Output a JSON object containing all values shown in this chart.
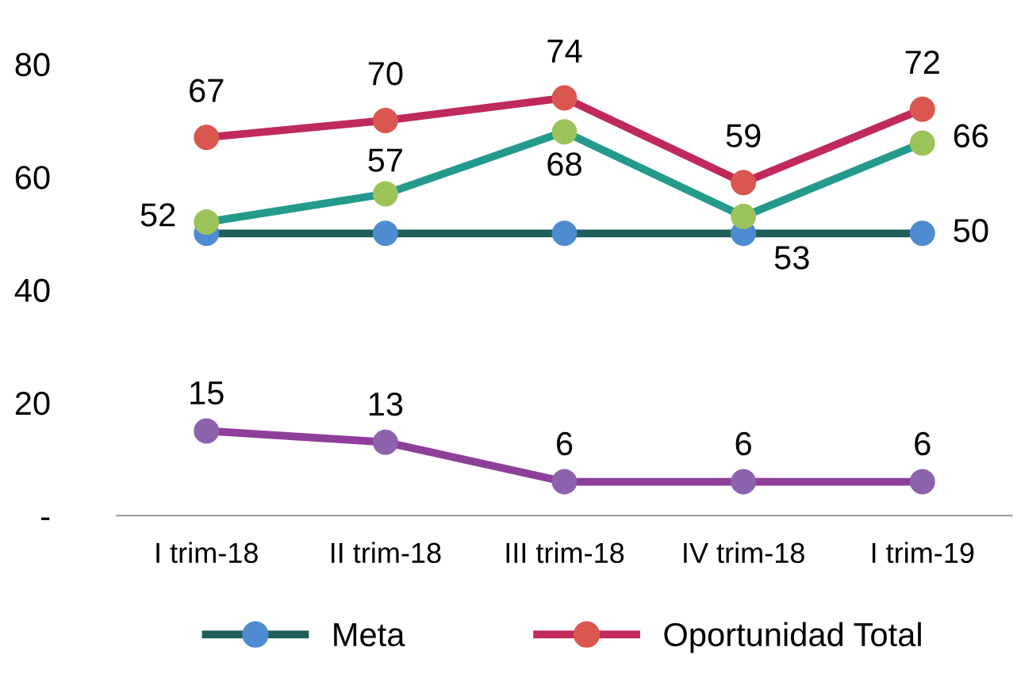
{
  "chart_data": {
    "type": "line",
    "categories": [
      "I trim-18",
      "II trim-18",
      "III trim-18",
      "IV trim-18",
      "I trim-19"
    ],
    "series": [
      {
        "name": "Meta",
        "color": "#1f5f5b",
        "colors": [
          "#4f8bd0",
          "#4f8bd0",
          "#4f8bd0",
          "#4f8bd0",
          "#4f8bd0"
        ],
        "values": [
          50,
          50,
          50,
          50,
          50
        ],
        "value_labels": [
          null,
          null,
          null,
          null,
          "50"
        ]
      },
      {
        "name": "Oportunidad Total",
        "color": "#bf2a5a",
        "colors": [
          "#d9574f",
          "#d9574f",
          "#d9574f",
          "#d9574f",
          "#d9574f"
        ],
        "values": [
          67,
          70,
          74,
          59,
          72
        ],
        "value_labels": [
          "67",
          "70",
          "74",
          "59",
          "72"
        ]
      },
      {
        "color": "#239a8c",
        "colors": [
          "#9cc35a",
          "#9cc35a",
          "#9cc35a",
          "#9cc35a",
          "#9cc35a"
        ],
        "values": [
          52,
          57,
          68,
          53,
          66
        ],
        "value_labels": [
          "52",
          "57",
          "68",
          "53",
          "66"
        ]
      },
      {
        "color": "#8e3f9a",
        "colors": [
          "#8c62ad",
          "#8c62ad",
          "#8c62ad",
          "#8c62ad",
          "#8c62ad"
        ],
        "values": [
          15,
          13,
          6,
          6,
          6
        ],
        "value_labels": [
          "15",
          "13",
          "6",
          "6",
          "6"
        ]
      }
    ],
    "ylim": [
      0,
      80
    ],
    "yticks": [
      {
        "value": 0,
        "label": "-"
      },
      20,
      40,
      60,
      80
    ],
    "grid": false,
    "legend": "bottom",
    "marker": "circle",
    "line_style": "solid"
  }
}
